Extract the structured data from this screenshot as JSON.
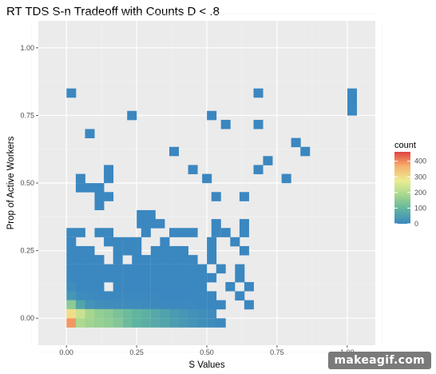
{
  "chart_data": {
    "type": "heatmap",
    "title": "RT TDS S-n Tradeoff with Counts D < .8",
    "xlabel": "S Values",
    "ylabel": "Prop of Active Workers",
    "xlim": [
      -0.1,
      1.1
    ],
    "ylim": [
      -0.1,
      1.1
    ],
    "x_ticks": [
      "0.00",
      "0.25",
      "0.50",
      "0.75",
      "1.00"
    ],
    "y_ticks": [
      "0.00",
      "0.25",
      "0.50",
      "0.75",
      "1.00"
    ],
    "grid": true,
    "background": "#ebebeb",
    "legend": {
      "title": "count",
      "position": "right",
      "labels": [
        "400",
        "300",
        "200",
        "100",
        "0"
      ],
      "scale_max": 460,
      "colors": [
        "#3b87c0",
        "#5fb4a0",
        "#a6d78f",
        "#ecec93",
        "#f7b26d",
        "#e04343"
      ]
    },
    "bin_width": 0.0333,
    "bin_height": 0.0333,
    "cells": [
      [
        0.017,
        0.833,
        1
      ],
      [
        0.233,
        0.75,
        1
      ],
      [
        0.517,
        0.75,
        1
      ],
      [
        0.567,
        0.717,
        1
      ],
      [
        0.683,
        0.833,
        1
      ],
      [
        0.683,
        0.717,
        1
      ],
      [
        1.017,
        0.833,
        1
      ],
      [
        1.017,
        0.8,
        1
      ],
      [
        1.017,
        0.767,
        1
      ],
      [
        0.083,
        0.683,
        1
      ],
      [
        0.817,
        0.65,
        1
      ],
      [
        0.85,
        0.617,
        1
      ],
      [
        0.383,
        0.617,
        1
      ],
      [
        0.717,
        0.583,
        1
      ],
      [
        0.15,
        0.55,
        1
      ],
      [
        0.45,
        0.55,
        1
      ],
      [
        0.683,
        0.55,
        1
      ],
      [
        0.5,
        0.517,
        1
      ],
      [
        0.783,
        0.517,
        1
      ],
      [
        0.05,
        0.517,
        1
      ],
      [
        0.05,
        0.483,
        1
      ],
      [
        0.083,
        0.483,
        1
      ],
      [
        0.117,
        0.483,
        1
      ],
      [
        0.117,
        0.45,
        1
      ],
      [
        0.117,
        0.417,
        1
      ],
      [
        0.15,
        0.45,
        1
      ],
      [
        0.15,
        0.517,
        1
      ],
      [
        0.633,
        0.45,
        1
      ],
      [
        0.533,
        0.45,
        1
      ],
      [
        0.267,
        0.383,
        1
      ],
      [
        0.3,
        0.383,
        1
      ],
      [
        0.267,
        0.35,
        1
      ],
      [
        0.3,
        0.35,
        1
      ],
      [
        0.333,
        0.35,
        1
      ],
      [
        0.533,
        0.35,
        1
      ],
      [
        0.633,
        0.35,
        1
      ],
      [
        0.017,
        0.317,
        1
      ],
      [
        0.05,
        0.317,
        1
      ],
      [
        0.017,
        0.283,
        1
      ],
      [
        0.017,
        0.25,
        1
      ],
      [
        0.05,
        0.25,
        1
      ],
      [
        0.083,
        0.25,
        1
      ],
      [
        0.117,
        0.317,
        1
      ],
      [
        0.15,
        0.283,
        1
      ],
      [
        0.15,
        0.317,
        1
      ],
      [
        0.183,
        0.283,
        1
      ],
      [
        0.217,
        0.283,
        1
      ],
      [
        0.25,
        0.283,
        1
      ],
      [
        0.283,
        0.317,
        1
      ],
      [
        0.35,
        0.283,
        1
      ],
      [
        0.383,
        0.317,
        1
      ],
      [
        0.417,
        0.317,
        1
      ],
      [
        0.45,
        0.317,
        1
      ],
      [
        0.533,
        0.317,
        1
      ],
      [
        0.567,
        0.317,
        1
      ],
      [
        0.6,
        0.283,
        1
      ],
      [
        0.633,
        0.317,
        1
      ],
      [
        0.183,
        0.25,
        1
      ],
      [
        0.217,
        0.25,
        1
      ],
      [
        0.25,
        0.25,
        1
      ],
      [
        0.317,
        0.25,
        1
      ],
      [
        0.35,
        0.25,
        1
      ],
      [
        0.383,
        0.25,
        1
      ],
      [
        0.417,
        0.25,
        1
      ],
      [
        0.517,
        0.283,
        1
      ],
      [
        0.517,
        0.25,
        1
      ],
      [
        0.633,
        0.25,
        1
      ],
      [
        0.017,
        0.217,
        1
      ],
      [
        0.05,
        0.217,
        1
      ],
      [
        0.083,
        0.217,
        1
      ],
      [
        0.117,
        0.217,
        1
      ],
      [
        0.183,
        0.217,
        1
      ],
      [
        0.25,
        0.217,
        1
      ],
      [
        0.283,
        0.217,
        1
      ],
      [
        0.317,
        0.217,
        1
      ],
      [
        0.35,
        0.217,
        1
      ],
      [
        0.383,
        0.217,
        1
      ],
      [
        0.417,
        0.217,
        1
      ],
      [
        0.45,
        0.217,
        1
      ],
      [
        0.517,
        0.217,
        1
      ],
      [
        0.017,
        0.183,
        1
      ],
      [
        0.05,
        0.183,
        1
      ],
      [
        0.083,
        0.183,
        1
      ],
      [
        0.117,
        0.183,
        1
      ],
      [
        0.15,
        0.183,
        1
      ],
      [
        0.183,
        0.183,
        1
      ],
      [
        0.217,
        0.183,
        1
      ],
      [
        0.25,
        0.183,
        1
      ],
      [
        0.283,
        0.183,
        1
      ],
      [
        0.317,
        0.183,
        1
      ],
      [
        0.35,
        0.183,
        1
      ],
      [
        0.383,
        0.183,
        1
      ],
      [
        0.417,
        0.183,
        1
      ],
      [
        0.45,
        0.183,
        1
      ],
      [
        0.483,
        0.183,
        1
      ],
      [
        0.55,
        0.183,
        1
      ],
      [
        0.617,
        0.183,
        1
      ],
      [
        0.017,
        0.15,
        1
      ],
      [
        0.05,
        0.15,
        1
      ],
      [
        0.083,
        0.15,
        1
      ],
      [
        0.117,
        0.15,
        1
      ],
      [
        0.15,
        0.15,
        1
      ],
      [
        0.183,
        0.15,
        1
      ],
      [
        0.217,
        0.15,
        1
      ],
      [
        0.25,
        0.15,
        1
      ],
      [
        0.283,
        0.15,
        1
      ],
      [
        0.317,
        0.15,
        1
      ],
      [
        0.35,
        0.15,
        1
      ],
      [
        0.383,
        0.15,
        1
      ],
      [
        0.417,
        0.15,
        1
      ],
      [
        0.45,
        0.15,
        1
      ],
      [
        0.483,
        0.15,
        1
      ],
      [
        0.517,
        0.15,
        1
      ],
      [
        0.617,
        0.15,
        1
      ],
      [
        0.017,
        0.117,
        12
      ],
      [
        0.05,
        0.117,
        1
      ],
      [
        0.083,
        0.117,
        1
      ],
      [
        0.117,
        0.117,
        1
      ],
      [
        0.183,
        0.117,
        1
      ],
      [
        0.217,
        0.117,
        1
      ],
      [
        0.25,
        0.117,
        1
      ],
      [
        0.283,
        0.117,
        1
      ],
      [
        0.317,
        0.117,
        1
      ],
      [
        0.35,
        0.117,
        1
      ],
      [
        0.383,
        0.117,
        1
      ],
      [
        0.417,
        0.117,
        1
      ],
      [
        0.45,
        0.117,
        1
      ],
      [
        0.483,
        0.117,
        1
      ],
      [
        0.583,
        0.117,
        1
      ],
      [
        0.65,
        0.117,
        1
      ],
      [
        0.017,
        0.083,
        30
      ],
      [
        0.05,
        0.083,
        8
      ],
      [
        0.083,
        0.083,
        6
      ],
      [
        0.117,
        0.083,
        3
      ],
      [
        0.15,
        0.083,
        3
      ],
      [
        0.183,
        0.083,
        2
      ],
      [
        0.217,
        0.083,
        2
      ],
      [
        0.25,
        0.083,
        2
      ],
      [
        0.283,
        0.083,
        2
      ],
      [
        0.317,
        0.083,
        2
      ],
      [
        0.35,
        0.083,
        1
      ],
      [
        0.383,
        0.083,
        1
      ],
      [
        0.417,
        0.083,
        1
      ],
      [
        0.45,
        0.083,
        1
      ],
      [
        0.483,
        0.083,
        1
      ],
      [
        0.517,
        0.083,
        1
      ],
      [
        0.617,
        0.083,
        1
      ],
      [
        0.017,
        0.05,
        150
      ],
      [
        0.05,
        0.05,
        60
      ],
      [
        0.083,
        0.05,
        25
      ],
      [
        0.117,
        0.05,
        15
      ],
      [
        0.15,
        0.05,
        12
      ],
      [
        0.183,
        0.05,
        10
      ],
      [
        0.217,
        0.05,
        8
      ],
      [
        0.25,
        0.05,
        8
      ],
      [
        0.283,
        0.05,
        6
      ],
      [
        0.317,
        0.05,
        5
      ],
      [
        0.35,
        0.05,
        4
      ],
      [
        0.383,
        0.05,
        3
      ],
      [
        0.417,
        0.05,
        2
      ],
      [
        0.45,
        0.05,
        2
      ],
      [
        0.483,
        0.05,
        1
      ],
      [
        0.517,
        0.05,
        1
      ],
      [
        0.55,
        0.05,
        1
      ],
      [
        0.65,
        0.05,
        1
      ],
      [
        0.017,
        0.017,
        300
      ],
      [
        0.05,
        0.017,
        230
      ],
      [
        0.083,
        0.017,
        185
      ],
      [
        0.117,
        0.017,
        160
      ],
      [
        0.15,
        0.017,
        150
      ],
      [
        0.183,
        0.017,
        130
      ],
      [
        0.217,
        0.017,
        110
      ],
      [
        0.25,
        0.017,
        95
      ],
      [
        0.283,
        0.017,
        85
      ],
      [
        0.317,
        0.017,
        70
      ],
      [
        0.35,
        0.017,
        55
      ],
      [
        0.383,
        0.017,
        40
      ],
      [
        0.417,
        0.017,
        30
      ],
      [
        0.45,
        0.017,
        20
      ],
      [
        0.483,
        0.017,
        15
      ],
      [
        0.517,
        0.017,
        10
      ],
      [
        0.017,
        -0.017,
        390
      ],
      [
        0.05,
        -0.017,
        195
      ],
      [
        0.083,
        -0.017,
        175
      ],
      [
        0.117,
        -0.017,
        165
      ],
      [
        0.15,
        -0.017,
        155
      ],
      [
        0.183,
        -0.017,
        140
      ],
      [
        0.217,
        -0.017,
        110
      ],
      [
        0.25,
        -0.017,
        90
      ],
      [
        0.283,
        -0.017,
        80
      ],
      [
        0.317,
        -0.017,
        70
      ],
      [
        0.35,
        -0.017,
        60
      ],
      [
        0.383,
        -0.017,
        45
      ],
      [
        0.417,
        -0.017,
        35
      ],
      [
        0.45,
        -0.017,
        25
      ],
      [
        0.483,
        -0.017,
        15
      ],
      [
        0.517,
        -0.017,
        10
      ],
      [
        0.55,
        -0.017,
        5
      ]
    ]
  },
  "watermark": "makeagif.com"
}
